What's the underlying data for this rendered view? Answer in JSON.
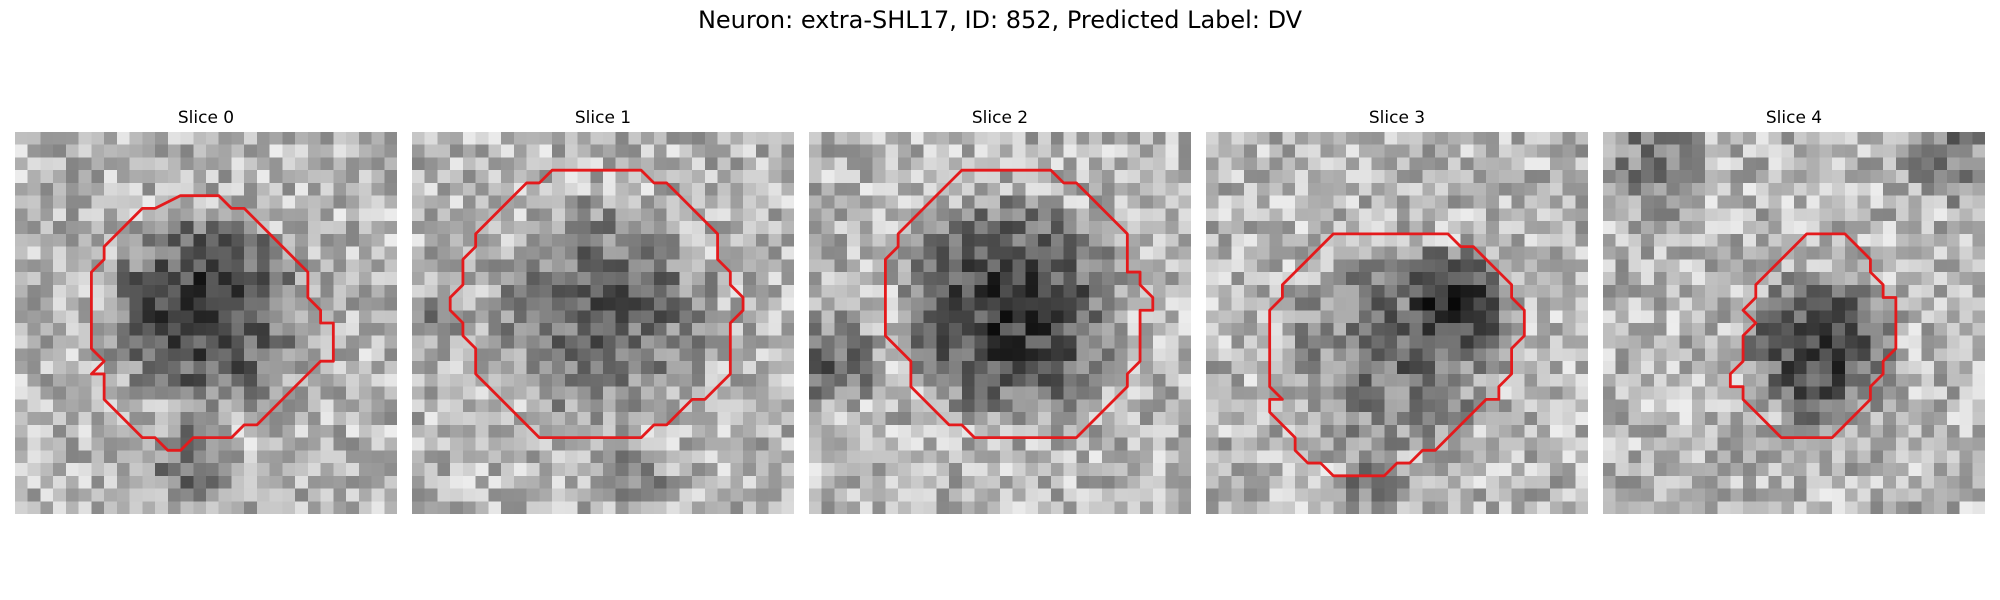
{
  "figure": {
    "title": "Neuron: extra-SHL17, ID: 852, Predicted Label: DV",
    "contour_color": "#e41a1c"
  },
  "panels": [
    {
      "title": "Slice 0",
      "contour": [
        [
          14,
          5
        ],
        [
          16,
          5
        ],
        [
          17,
          6
        ],
        [
          18,
          6
        ],
        [
          20,
          8
        ],
        [
          21,
          9
        ],
        [
          22,
          10
        ],
        [
          23,
          11
        ],
        [
          23,
          13
        ],
        [
          24,
          14
        ],
        [
          24,
          15
        ],
        [
          25,
          15
        ],
        [
          25,
          18
        ],
        [
          24,
          18
        ],
        [
          23,
          19
        ],
        [
          22,
          20
        ],
        [
          21,
          21
        ],
        [
          20,
          22
        ],
        [
          19,
          23
        ],
        [
          18,
          23
        ],
        [
          17,
          24
        ],
        [
          16,
          24
        ],
        [
          15,
          24
        ],
        [
          14,
          24
        ],
        [
          13,
          25
        ],
        [
          12,
          25
        ],
        [
          11,
          24
        ],
        [
          10,
          24
        ],
        [
          9,
          23
        ],
        [
          8,
          22
        ],
        [
          7,
          21
        ],
        [
          7,
          19
        ],
        [
          6,
          19
        ],
        [
          7,
          18
        ],
        [
          6,
          17
        ],
        [
          6,
          11
        ],
        [
          7,
          10
        ],
        [
          7,
          9
        ],
        [
          8,
          8
        ],
        [
          9,
          7
        ],
        [
          10,
          6
        ],
        [
          11,
          6
        ],
        [
          13,
          5
        ]
      ]
    },
    {
      "title": "Slice 1",
      "contour": [
        [
          11,
          3
        ],
        [
          18,
          3
        ],
        [
          19,
          4
        ],
        [
          20,
          4
        ],
        [
          21,
          5
        ],
        [
          22,
          6
        ],
        [
          23,
          7
        ],
        [
          24,
          8
        ],
        [
          24,
          10
        ],
        [
          25,
          11
        ],
        [
          25,
          12
        ],
        [
          26,
          13
        ],
        [
          26,
          14
        ],
        [
          25,
          15
        ],
        [
          25,
          19
        ],
        [
          24,
          20
        ],
        [
          23,
          21
        ],
        [
          22,
          21
        ],
        [
          21,
          22
        ],
        [
          20,
          23
        ],
        [
          19,
          23
        ],
        [
          18,
          24
        ],
        [
          17,
          24
        ],
        [
          10,
          24
        ],
        [
          9,
          23
        ],
        [
          8,
          22
        ],
        [
          7,
          21
        ],
        [
          6,
          20
        ],
        [
          5,
          19
        ],
        [
          5,
          17
        ],
        [
          4,
          16
        ],
        [
          4,
          15
        ],
        [
          3,
          14
        ],
        [
          3,
          13
        ],
        [
          4,
          12
        ],
        [
          4,
          10
        ],
        [
          5,
          9
        ],
        [
          5,
          8
        ],
        [
          6,
          7
        ],
        [
          7,
          6
        ],
        [
          8,
          5
        ],
        [
          9,
          4
        ],
        [
          10,
          4
        ]
      ]
    },
    {
      "title": "Slice 2",
      "contour": [
        [
          12,
          3
        ],
        [
          19,
          3
        ],
        [
          20,
          4
        ],
        [
          21,
          4
        ],
        [
          22,
          5
        ],
        [
          23,
          6
        ],
        [
          24,
          7
        ],
        [
          25,
          8
        ],
        [
          25,
          11
        ],
        [
          26,
          11
        ],
        [
          26,
          12
        ],
        [
          27,
          13
        ],
        [
          27,
          14
        ],
        [
          26,
          14
        ],
        [
          26,
          18
        ],
        [
          25,
          19
        ],
        [
          25,
          20
        ],
        [
          24,
          21
        ],
        [
          23,
          22
        ],
        [
          22,
          23
        ],
        [
          21,
          24
        ],
        [
          20,
          24
        ],
        [
          13,
          24
        ],
        [
          12,
          23
        ],
        [
          11,
          23
        ],
        [
          10,
          22
        ],
        [
          9,
          21
        ],
        [
          8,
          20
        ],
        [
          8,
          18
        ],
        [
          7,
          17
        ],
        [
          6,
          16
        ],
        [
          6,
          10
        ],
        [
          7,
          9
        ],
        [
          7,
          8
        ],
        [
          8,
          7
        ],
        [
          9,
          6
        ],
        [
          10,
          5
        ],
        [
          11,
          4
        ]
      ]
    },
    {
      "title": "Slice 3",
      "contour": [
        [
          14,
          8
        ],
        [
          19,
          8
        ],
        [
          20,
          9
        ],
        [
          21,
          9
        ],
        [
          22,
          10
        ],
        [
          23,
          11
        ],
        [
          24,
          12
        ],
        [
          24,
          13
        ],
        [
          25,
          14
        ],
        [
          25,
          16
        ],
        [
          24,
          17
        ],
        [
          24,
          19
        ],
        [
          23,
          20
        ],
        [
          23,
          21
        ],
        [
          22,
          21
        ],
        [
          21,
          22
        ],
        [
          20,
          23
        ],
        [
          19,
          24
        ],
        [
          18,
          25
        ],
        [
          17,
          25
        ],
        [
          16,
          26
        ],
        [
          15,
          26
        ],
        [
          14,
          27
        ],
        [
          10,
          27
        ],
        [
          9,
          26
        ],
        [
          8,
          26
        ],
        [
          7,
          25
        ],
        [
          7,
          24
        ],
        [
          6,
          23
        ],
        [
          5,
          22
        ],
        [
          5,
          21
        ],
        [
          6,
          21
        ],
        [
          5,
          20
        ],
        [
          5,
          14
        ],
        [
          6,
          13
        ],
        [
          6,
          12
        ],
        [
          7,
          11
        ],
        [
          8,
          10
        ],
        [
          9,
          9
        ],
        [
          10,
          8
        ]
      ]
    },
    {
      "title": "Slice 4",
      "contour": [
        [
          16,
          8
        ],
        [
          19,
          8
        ],
        [
          20,
          9
        ],
        [
          21,
          10
        ],
        [
          21,
          11
        ],
        [
          22,
          12
        ],
        [
          22,
          13
        ],
        [
          23,
          13
        ],
        [
          23,
          17
        ],
        [
          22,
          18
        ],
        [
          22,
          19
        ],
        [
          21,
          20
        ],
        [
          21,
          21
        ],
        [
          20,
          22
        ],
        [
          19,
          23
        ],
        [
          18,
          24
        ],
        [
          14,
          24
        ],
        [
          13,
          23
        ],
        [
          12,
          22
        ],
        [
          11,
          21
        ],
        [
          11,
          20
        ],
        [
          10,
          20
        ],
        [
          10,
          19
        ],
        [
          11,
          18
        ],
        [
          11,
          16
        ],
        [
          12,
          15
        ],
        [
          11,
          14
        ],
        [
          12,
          13
        ],
        [
          12,
          12
        ],
        [
          13,
          11
        ],
        [
          14,
          10
        ],
        [
          15,
          9
        ]
      ]
    }
  ]
}
